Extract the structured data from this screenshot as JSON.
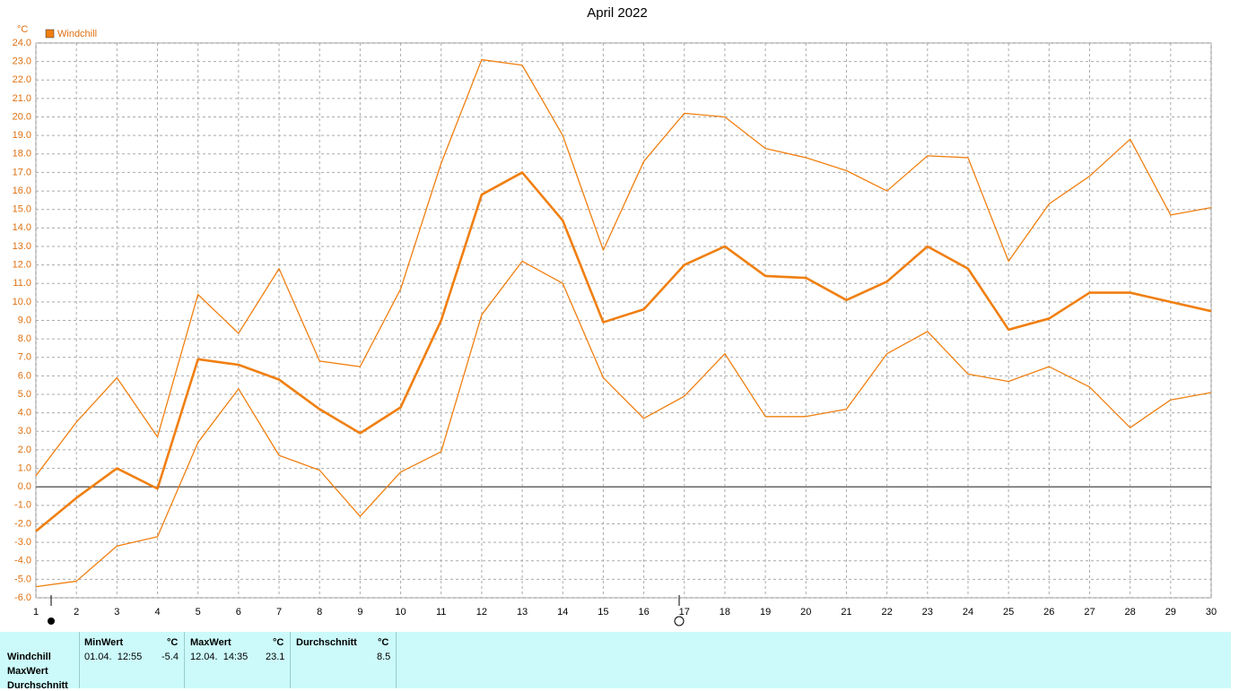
{
  "chart_data": {
    "type": "line",
    "title": "April 2022",
    "y_unit": "°C",
    "x": [
      1,
      2,
      3,
      4,
      5,
      6,
      7,
      8,
      9,
      10,
      11,
      12,
      13,
      14,
      15,
      16,
      17,
      18,
      19,
      20,
      21,
      22,
      23,
      24,
      25,
      26,
      27,
      28,
      29,
      30
    ],
    "xlim": [
      1,
      30
    ],
    "xticks": [
      1,
      2,
      3,
      4,
      5,
      6,
      7,
      8,
      9,
      10,
      11,
      12,
      13,
      14,
      15,
      16,
      17,
      18,
      19,
      20,
      21,
      22,
      23,
      24,
      25,
      26,
      27,
      28,
      29,
      30
    ],
    "ylim": [
      -6,
      24
    ],
    "yticks": [
      {
        "value": -6,
        "label": "-6.0"
      },
      {
        "value": -5,
        "label": "-5.0"
      },
      {
        "value": -4,
        "label": "-4.0"
      },
      {
        "value": -3,
        "label": "-3.0"
      },
      {
        "value": -2,
        "label": "-2.0"
      },
      {
        "value": -1,
        "label": "-1.0"
      },
      {
        "value": 0,
        "label": "0.0"
      },
      {
        "value": 1,
        "label": "1.0"
      },
      {
        "value": 2,
        "label": "2.0"
      },
      {
        "value": 3,
        "label": "3.0"
      },
      {
        "value": 4,
        "label": "4.0"
      },
      {
        "value": 5,
        "label": "5.0"
      },
      {
        "value": 6,
        "label": "6.0"
      },
      {
        "value": 7,
        "label": "7.0"
      },
      {
        "value": 8,
        "label": "8.0"
      },
      {
        "value": 9,
        "label": "9.0"
      },
      {
        "value": 10,
        "label": "10.0"
      },
      {
        "value": 11,
        "label": "11.0"
      },
      {
        "value": 12,
        "label": "12.0"
      },
      {
        "value": 13,
        "label": "13.0"
      },
      {
        "value": 14,
        "label": "14.0"
      },
      {
        "value": 15,
        "label": "15.0"
      },
      {
        "value": 16,
        "label": "16.0"
      },
      {
        "value": 17,
        "label": "17.0"
      },
      {
        "value": 18,
        "label": "18.0"
      },
      {
        "value": 19,
        "label": "19.0"
      },
      {
        "value": 20,
        "label": "20.0"
      },
      {
        "value": 21,
        "label": "21.0"
      },
      {
        "value": 22,
        "label": "22.0"
      },
      {
        "value": 23,
        "label": "23.0"
      },
      {
        "value": 24,
        "label": "24.0"
      }
    ],
    "grid": true,
    "series": [
      {
        "color": "#f07f10",
        "width": 1.3,
        "values": [
          0.6,
          3.5,
          5.9,
          2.7,
          10.4,
          8.3,
          11.8,
          6.8,
          6.5,
          10.7,
          17.5,
          23.1,
          22.8,
          19.0,
          12.8,
          17.6,
          20.2,
          20.0,
          18.3,
          17.8,
          17.1,
          16.0,
          17.9,
          17.8,
          12.2,
          15.3,
          16.8,
          18.8,
          14.7,
          15.1
        ]
      },
      {
        "name": "Windchill",
        "color": "#f07f10",
        "width": 2.6,
        "values": [
          -2.4,
          -0.6,
          1.0,
          -0.1,
          6.9,
          6.6,
          5.8,
          4.2,
          2.9,
          4.3,
          9.0,
          15.8,
          17.0,
          14.4,
          8.9,
          9.6,
          12.0,
          13.0,
          11.4,
          11.3,
          10.1,
          11.1,
          13.0,
          11.8,
          8.5,
          9.1,
          10.5,
          10.5,
          10.0,
          9.5
        ]
      },
      {
        "color": "#f07f10",
        "width": 1.3,
        "values": [
          -5.4,
          -5.1,
          -3.2,
          -2.7,
          2.4,
          5.3,
          1.7,
          0.9,
          -1.6,
          0.8,
          1.9,
          9.3,
          12.2,
          11.0,
          5.9,
          3.7,
          4.9,
          7.2,
          3.8,
          3.8,
          4.2,
          7.2,
          8.4,
          6.1,
          5.7,
          6.5,
          5.4,
          3.2,
          4.7,
          5.1
        ]
      }
    ]
  },
  "table": {
    "headers": [
      "MinWert",
      "°C",
      "MaxWert",
      "°C",
      "Durchschnitt",
      "°C"
    ],
    "row_labels": [
      "Windchill",
      "MaxWert",
      "Durchschnitt"
    ],
    "rows": [
      [
        "01.04.  12:55",
        -5.4,
        "12.04.  14:35",
        23.1,
        8.5
      ]
    ]
  }
}
